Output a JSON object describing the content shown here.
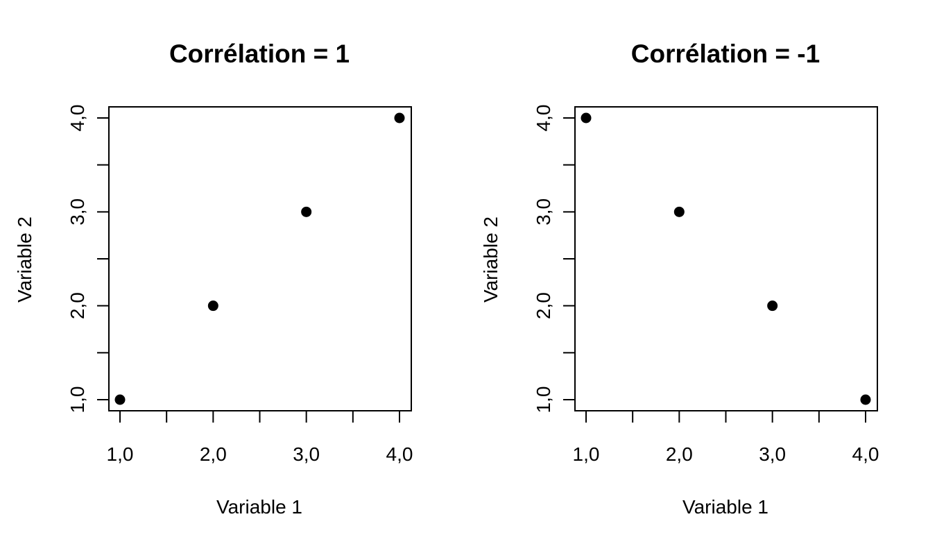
{
  "chart_data": [
    {
      "type": "scatter",
      "title": "Corrélation = 1",
      "xlabel": "Variable 1",
      "ylabel": "Variable 2",
      "x": [
        1,
        2,
        3,
        4
      ],
      "y": [
        1,
        2,
        3,
        4
      ],
      "xlim": [
        1,
        4
      ],
      "ylim": [
        1,
        4
      ],
      "xticks": [
        1,
        1.5,
        2,
        2.5,
        3,
        3.5,
        4
      ],
      "yticks": [
        1,
        1.5,
        2,
        2.5,
        3,
        3.5,
        4
      ],
      "xtick_labels": [
        "1,0",
        "",
        "2,0",
        "",
        "3,0",
        "",
        "4,0"
      ],
      "ytick_labels": [
        "1,0",
        "",
        "2,0",
        "",
        "3,0",
        "",
        "4,0"
      ],
      "grid": false,
      "marker_color": "#000000"
    },
    {
      "type": "scatter",
      "title": "Corrélation = -1",
      "xlabel": "Variable 1",
      "ylabel": "Variable 2",
      "x": [
        1,
        2,
        3,
        4
      ],
      "y": [
        4,
        3,
        2,
        1
      ],
      "xlim": [
        1,
        4
      ],
      "ylim": [
        1,
        4
      ],
      "xticks": [
        1,
        1.5,
        2,
        2.5,
        3,
        3.5,
        4
      ],
      "yticks": [
        1,
        1.5,
        2,
        2.5,
        3,
        3.5,
        4
      ],
      "xtick_labels": [
        "1,0",
        "",
        "2,0",
        "",
        "3,0",
        "",
        "4,0"
      ],
      "ytick_labels": [
        "1,0",
        "",
        "2,0",
        "",
        "3,0",
        "",
        "4,0"
      ],
      "grid": false,
      "marker_color": "#000000"
    }
  ]
}
